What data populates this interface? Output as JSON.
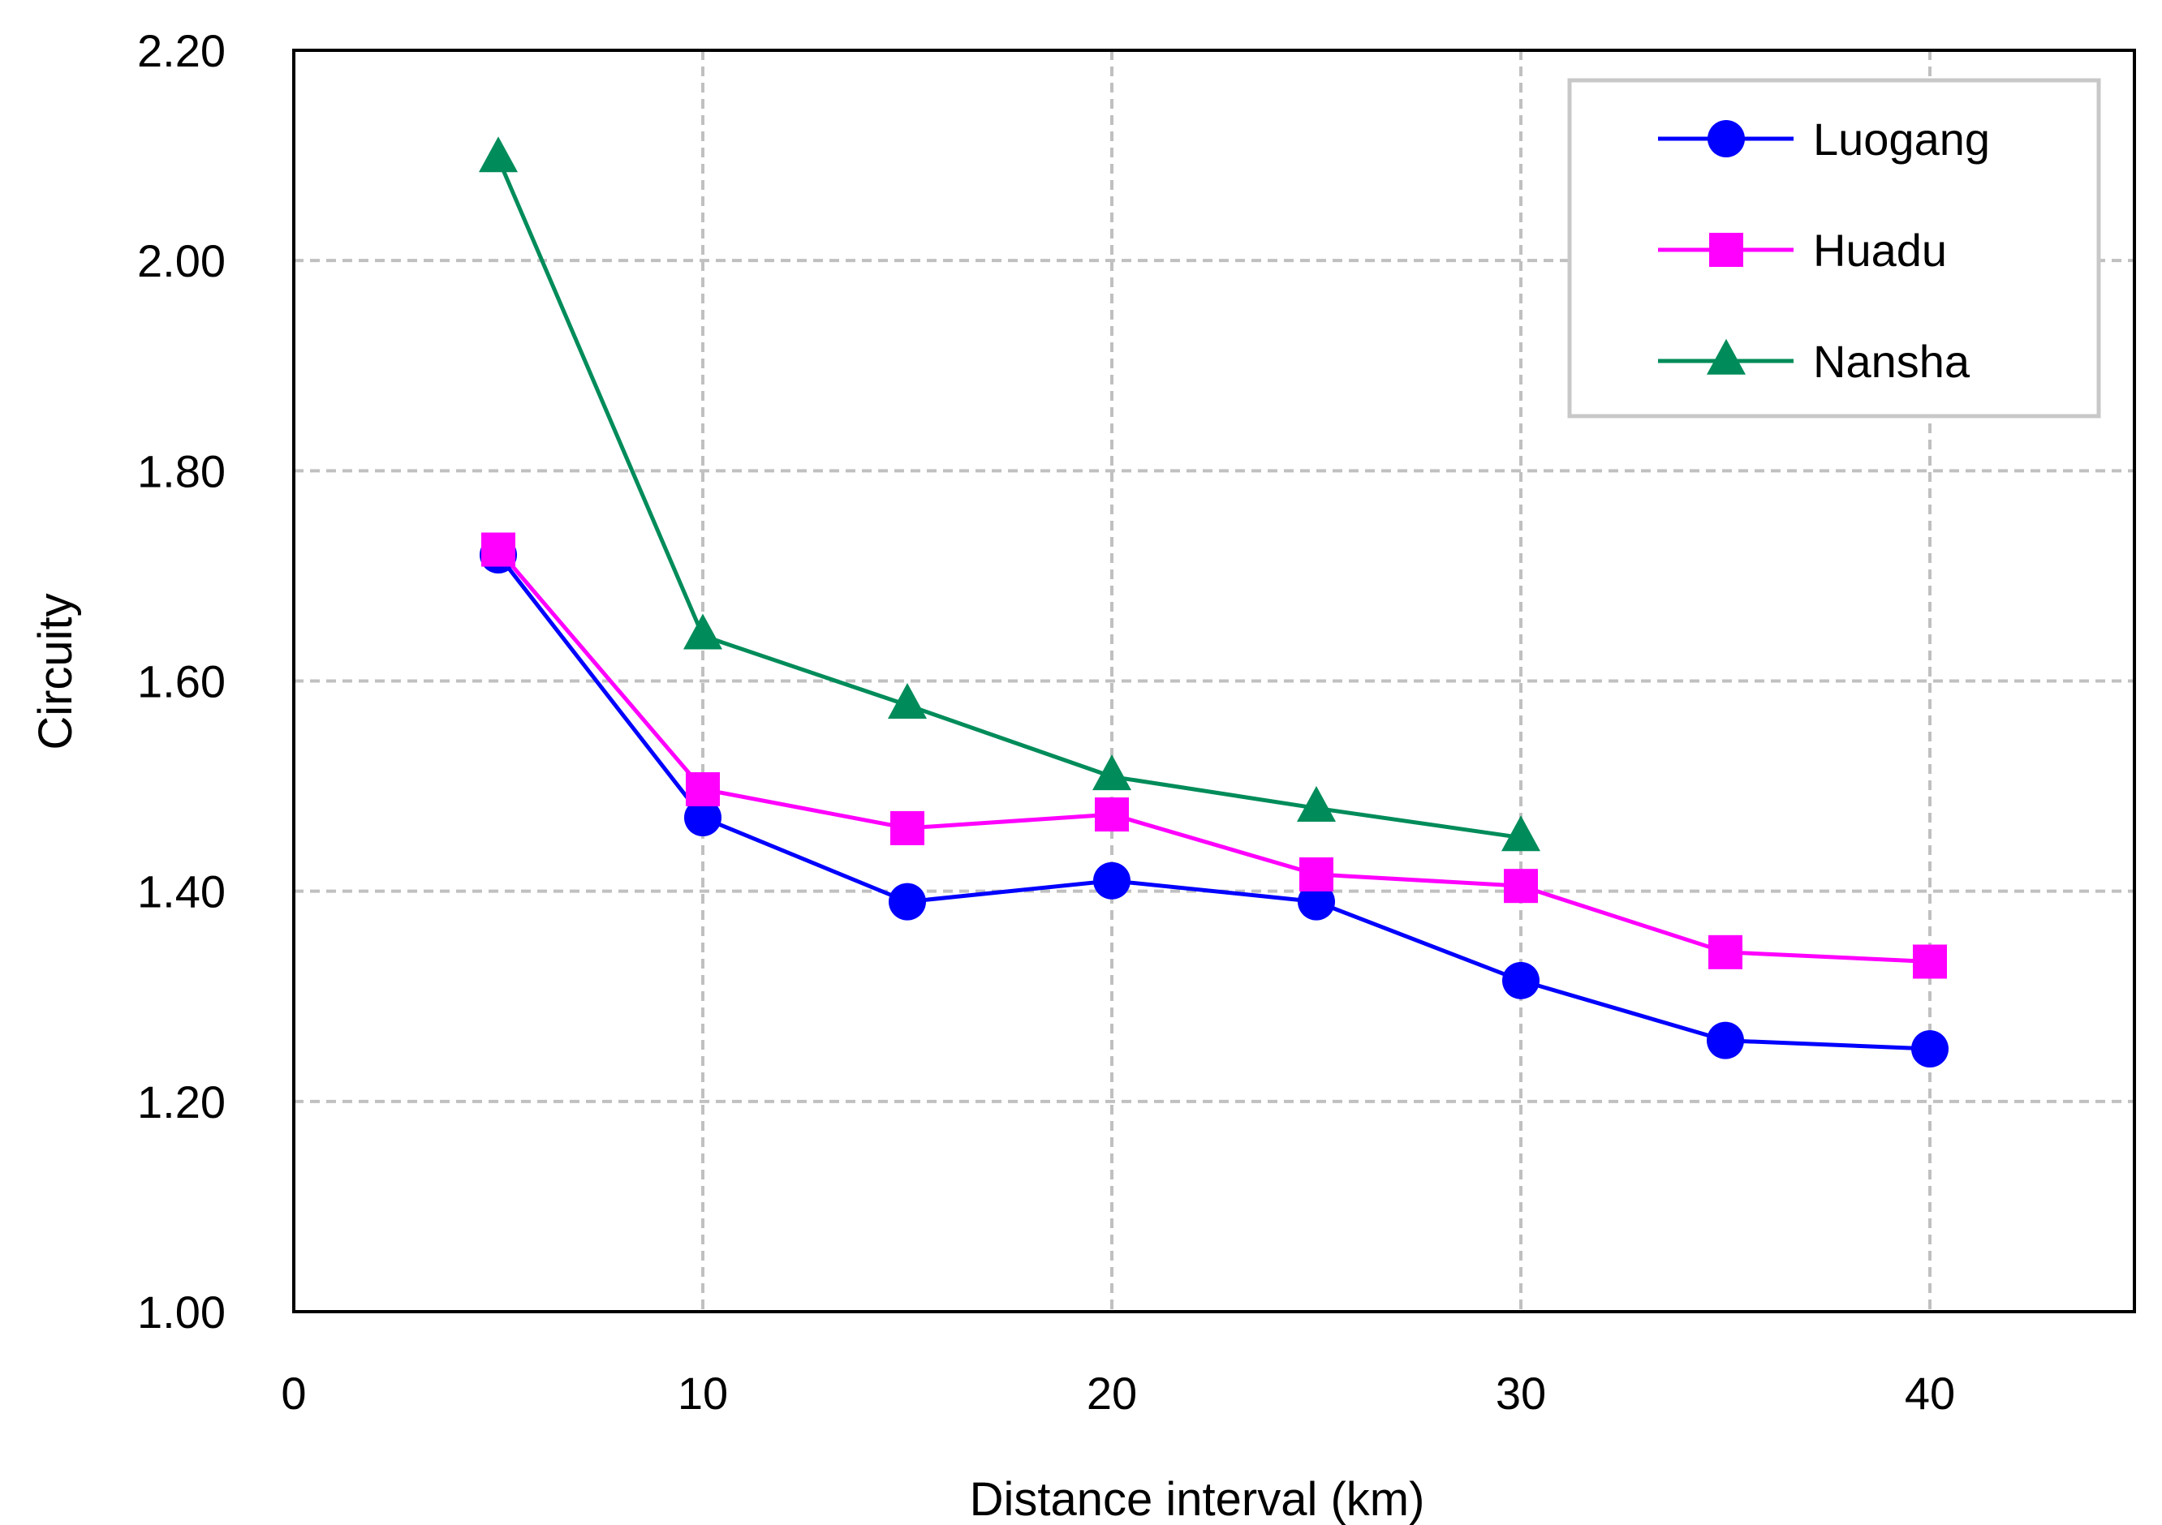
{
  "chart_data": {
    "type": "line",
    "title": "",
    "xlabel": "Distance interval (km)",
    "ylabel": "Circuity",
    "xlim": [
      0,
      45
    ],
    "ylim": [
      1.0,
      2.2
    ],
    "xticks": [
      0,
      10,
      20,
      30,
      40
    ],
    "xtick_labels": [
      "0",
      "10",
      "20",
      "30",
      "40"
    ],
    "yticks": [
      1.0,
      1.2,
      1.4,
      1.6,
      1.8,
      2.0,
      2.2
    ],
    "ytick_labels": [
      "1.00",
      "1.20",
      "1.40",
      "1.60",
      "1.80",
      "2.00",
      "2.20"
    ],
    "grid": true,
    "legend_position": "top-right",
    "series": [
      {
        "name": "Luogang",
        "color": "#0000FF",
        "marker": "circle",
        "x": [
          5,
          10,
          15,
          20,
          25,
          30,
          35,
          40
        ],
        "values": [
          1.72,
          1.47,
          1.39,
          1.41,
          1.39,
          1.315,
          1.258,
          1.25
        ]
      },
      {
        "name": "Huadu",
        "color": "#FF00FF",
        "marker": "square",
        "x": [
          5,
          10,
          15,
          20,
          25,
          30,
          35,
          40
        ],
        "values": [
          1.725,
          1.497,
          1.46,
          1.473,
          1.416,
          1.405,
          1.342,
          1.333
        ]
      },
      {
        "name": "Nansha",
        "color": "#008C5A",
        "marker": "triangle",
        "x": [
          5,
          10,
          15,
          20,
          25,
          30
        ],
        "values": [
          2.097,
          1.643,
          1.577,
          1.509,
          1.479,
          1.451
        ]
      }
    ]
  }
}
